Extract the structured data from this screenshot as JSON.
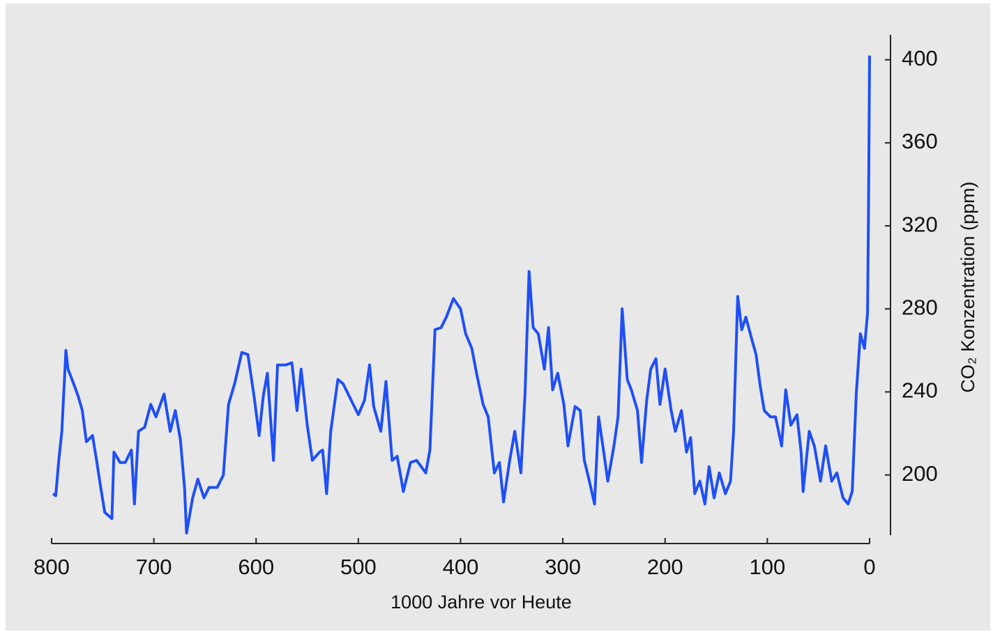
{
  "chart_data": {
    "type": "line",
    "xlabel": "1000 Jahre vor Heute",
    "ylabel": "CO₂ Konzentration (ppm)",
    "color": "#1f4ff5",
    "xlim": [
      800,
      0
    ],
    "xticks": [
      800,
      700,
      600,
      500,
      400,
      300,
      200,
      100,
      0
    ],
    "ylim": [
      171,
      412
    ],
    "yticks": [
      200,
      240,
      280,
      320,
      360,
      400
    ],
    "x": [
      798.6,
      796,
      793,
      790,
      786,
      784,
      780,
      774,
      770,
      766,
      760,
      756,
      752,
      748,
      741,
      739,
      733,
      728,
      722,
      719,
      715,
      709,
      703,
      698,
      690,
      684,
      679,
      674,
      670,
      668,
      662,
      657,
      651,
      646,
      638,
      632,
      627,
      621,
      614,
      608,
      602,
      597,
      593,
      589,
      586,
      583,
      579,
      571,
      565,
      560,
      556,
      550,
      545,
      538,
      535,
      531,
      527,
      520,
      515,
      509,
      500,
      494,
      489,
      485,
      478,
      473,
      467,
      462,
      456,
      449,
      443,
      434,
      430,
      425,
      419,
      414,
      407,
      400,
      395,
      389,
      384,
      378,
      373,
      367,
      362,
      358,
      352,
      347,
      341,
      337,
      333,
      329,
      324,
      318,
      314,
      310,
      305,
      299,
      295,
      288,
      283,
      279,
      275,
      269,
      265,
      260,
      256,
      250,
      246,
      242,
      237,
      233,
      227,
      223,
      218,
      214,
      209,
      205,
      200,
      194,
      190,
      184,
      179,
      175,
      171,
      166,
      161,
      157,
      152,
      147,
      141,
      136,
      133,
      129,
      125,
      121,
      115,
      111,
      107,
      103,
      97,
      92,
      86,
      82,
      77,
      71,
      67,
      65,
      59,
      54,
      48,
      43,
      37,
      32,
      26,
      21,
      17,
      13,
      9,
      5,
      2,
      1,
      0
    ],
    "values": [
      191,
      190,
      207,
      221,
      260,
      251,
      246,
      238,
      231,
      216,
      219,
      207,
      194,
      182,
      179,
      211,
      206,
      206,
      212,
      186,
      221,
      223,
      234,
      228,
      239,
      221,
      231,
      217,
      194,
      172,
      189,
      198,
      189,
      194,
      194,
      200,
      234,
      244,
      259,
      258,
      238,
      219,
      238,
      249,
      228,
      207,
      253,
      253,
      254,
      231,
      251,
      224,
      207,
      211,
      212,
      191,
      221,
      246,
      244,
      238,
      229,
      236,
      253,
      233,
      221,
      245,
      207,
      209,
      192,
      206,
      207,
      201,
      212,
      270,
      271,
      276,
      285,
      280,
      268,
      261,
      248,
      234,
      228,
      201,
      206,
      187,
      207,
      221,
      201,
      239,
      298,
      271,
      268,
      251,
      271,
      241,
      249,
      234,
      214,
      233,
      231,
      207,
      199,
      186,
      228,
      211,
      197,
      214,
      228,
      280,
      246,
      241,
      231,
      206,
      236,
      251,
      256,
      234,
      251,
      231,
      221,
      231,
      211,
      218,
      191,
      197,
      186,
      204,
      189,
      201,
      191,
      197,
      221,
      286,
      270,
      276,
      265,
      258,
      243,
      231,
      228,
      228,
      214,
      241,
      224,
      229,
      211,
      192,
      221,
      214,
      197,
      214,
      197,
      201,
      189,
      186,
      192,
      239,
      268,
      261,
      278,
      328,
      402
    ]
  }
}
